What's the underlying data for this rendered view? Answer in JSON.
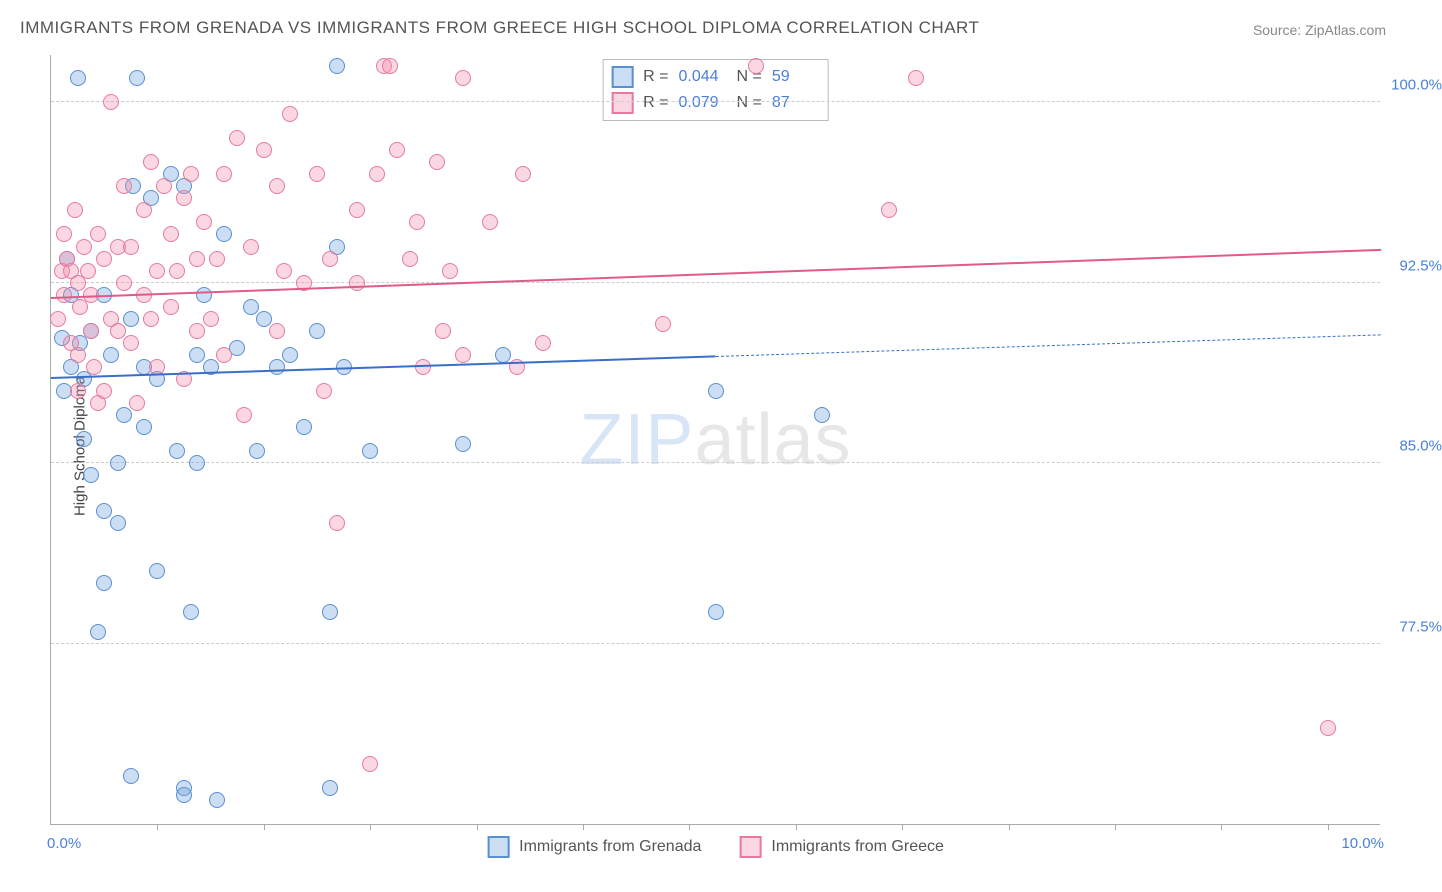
{
  "title": "IMMIGRANTS FROM GRENADA VS IMMIGRANTS FROM GREECE HIGH SCHOOL DIPLOMA CORRELATION CHART",
  "source": "Source: ZipAtlas.com",
  "ylabel": "High School Diploma",
  "watermark_a": "ZIP",
  "watermark_b": "atlas",
  "chart": {
    "type": "scatter",
    "background_color": "#ffffff",
    "grid_color": "#cccccc",
    "axis_color": "#aaaaaa",
    "xlim": [
      0.0,
      10.0
    ],
    "ylim": [
      70.0,
      102.0
    ],
    "xticks": [
      0.8,
      1.6,
      2.4,
      3.2,
      4.0,
      4.8,
      5.6,
      6.4,
      7.2,
      8.0,
      8.8,
      9.6
    ],
    "yticks": [
      77.5,
      85.0,
      92.5,
      100.0
    ],
    "ytick_labels": [
      "77.5%",
      "85.0%",
      "92.5%",
      "100.0%"
    ],
    "xlim_labels": [
      "0.0%",
      "10.0%"
    ],
    "label_fontsize": 15,
    "point_radius": 8,
    "point_border_width": 1.5,
    "series": [
      {
        "name": "Immigrants from Grenada",
        "color_fill": "rgba(108,160,220,0.35)",
        "color_stroke": "#5a8fd0",
        "r_value": "0.044",
        "n_value": "59",
        "trend": {
          "x1": 0.0,
          "y1": 88.5,
          "x2": 5.0,
          "y2": 89.4,
          "dash_to_x": 10.0,
          "dash_to_y": 90.3,
          "width": 2.5,
          "color": "#3b6fc7"
        },
        "points": [
          [
            0.08,
            90.2
          ],
          [
            0.1,
            88.0
          ],
          [
            0.12,
            93.5
          ],
          [
            0.15,
            92.0
          ],
          [
            0.15,
            89.0
          ],
          [
            0.2,
            101.0
          ],
          [
            0.22,
            90.0
          ],
          [
            0.25,
            88.5
          ],
          [
            0.25,
            86.0
          ],
          [
            0.3,
            84.5
          ],
          [
            0.3,
            90.5
          ],
          [
            0.35,
            78.0
          ],
          [
            0.4,
            92.0
          ],
          [
            0.4,
            83.0
          ],
          [
            0.4,
            80.0
          ],
          [
            0.45,
            89.5
          ],
          [
            0.5,
            85.0
          ],
          [
            0.5,
            82.5
          ],
          [
            0.55,
            87.0
          ],
          [
            0.6,
            72.0
          ],
          [
            0.6,
            91.0
          ],
          [
            0.62,
            96.5
          ],
          [
            0.65,
            101.0
          ],
          [
            0.7,
            89.0
          ],
          [
            0.7,
            86.5
          ],
          [
            0.75,
            96.0
          ],
          [
            0.8,
            80.5
          ],
          [
            0.8,
            88.5
          ],
          [
            0.9,
            97.0
          ],
          [
            0.95,
            85.5
          ],
          [
            1.0,
            71.5
          ],
          [
            1.0,
            71.2
          ],
          [
            1.0,
            96.5
          ],
          [
            1.05,
            78.8
          ],
          [
            1.1,
            89.5
          ],
          [
            1.1,
            85.0
          ],
          [
            1.15,
            92.0
          ],
          [
            1.2,
            89.0
          ],
          [
            1.3,
            94.5
          ],
          [
            1.25,
            71.0
          ],
          [
            1.4,
            89.8
          ],
          [
            1.5,
            91.5
          ],
          [
            1.55,
            85.5
          ],
          [
            1.6,
            91.0
          ],
          [
            1.7,
            89.0
          ],
          [
            1.8,
            89.5
          ],
          [
            1.9,
            86.5
          ],
          [
            2.0,
            90.5
          ],
          [
            2.1,
            71.5
          ],
          [
            2.1,
            78.8
          ],
          [
            2.15,
            94.0
          ],
          [
            2.15,
            101.5
          ],
          [
            2.2,
            89.0
          ],
          [
            2.4,
            85.5
          ],
          [
            3.1,
            85.8
          ],
          [
            3.4,
            89.5
          ],
          [
            5.0,
            88.0
          ],
          [
            5.0,
            78.8
          ],
          [
            5.8,
            87.0
          ]
        ]
      },
      {
        "name": "Immigrants from Greece",
        "color_fill": "rgba(240,140,170,0.35)",
        "color_stroke": "#e77aa0",
        "r_value": "0.079",
        "n_value": "87",
        "trend": {
          "x1": 0.0,
          "y1": 91.8,
          "x2": 10.0,
          "y2": 93.8,
          "width": 2.5,
          "color": "#e05a8a"
        },
        "points": [
          [
            0.05,
            91.0
          ],
          [
            0.08,
            93.0
          ],
          [
            0.1,
            92.0
          ],
          [
            0.1,
            94.5
          ],
          [
            0.12,
            93.5
          ],
          [
            0.15,
            93.0
          ],
          [
            0.15,
            90.0
          ],
          [
            0.18,
            95.5
          ],
          [
            0.2,
            88.0
          ],
          [
            0.2,
            92.5
          ],
          [
            0.2,
            89.5
          ],
          [
            0.22,
            91.5
          ],
          [
            0.25,
            94.0
          ],
          [
            0.28,
            93.0
          ],
          [
            0.3,
            90.5
          ],
          [
            0.3,
            92.0
          ],
          [
            0.32,
            89.0
          ],
          [
            0.35,
            94.5
          ],
          [
            0.35,
            87.5
          ],
          [
            0.4,
            88.0
          ],
          [
            0.4,
            93.5
          ],
          [
            0.45,
            100.0
          ],
          [
            0.45,
            91.0
          ],
          [
            0.5,
            94.0
          ],
          [
            0.5,
            90.5
          ],
          [
            0.55,
            92.5
          ],
          [
            0.55,
            96.5
          ],
          [
            0.6,
            94.0
          ],
          [
            0.6,
            90.0
          ],
          [
            0.65,
            87.5
          ],
          [
            0.7,
            92.0
          ],
          [
            0.7,
            95.5
          ],
          [
            0.75,
            91.0
          ],
          [
            0.75,
            97.5
          ],
          [
            0.8,
            93.0
          ],
          [
            0.8,
            89.0
          ],
          [
            0.85,
            96.5
          ],
          [
            0.9,
            94.5
          ],
          [
            0.9,
            91.5
          ],
          [
            0.95,
            93.0
          ],
          [
            1.0,
            96.0
          ],
          [
            1.0,
            88.5
          ],
          [
            1.05,
            97.0
          ],
          [
            1.1,
            93.5
          ],
          [
            1.1,
            90.5
          ],
          [
            1.15,
            95.0
          ],
          [
            1.2,
            91.0
          ],
          [
            1.25,
            93.5
          ],
          [
            1.3,
            89.5
          ],
          [
            1.3,
            97.0
          ],
          [
            1.4,
            98.5
          ],
          [
            1.45,
            87.0
          ],
          [
            1.5,
            94.0
          ],
          [
            1.6,
            98.0
          ],
          [
            1.7,
            96.5
          ],
          [
            1.7,
            90.5
          ],
          [
            1.75,
            93.0
          ],
          [
            1.8,
            99.5
          ],
          [
            1.9,
            92.5
          ],
          [
            2.0,
            97.0
          ],
          [
            2.05,
            88.0
          ],
          [
            2.1,
            93.5
          ],
          [
            2.15,
            82.5
          ],
          [
            2.3,
            92.5
          ],
          [
            2.3,
            95.5
          ],
          [
            2.4,
            72.5
          ],
          [
            2.45,
            97.0
          ],
          [
            2.5,
            101.5
          ],
          [
            2.55,
            101.5
          ],
          [
            2.6,
            98.0
          ],
          [
            2.7,
            93.5
          ],
          [
            2.75,
            95.0
          ],
          [
            2.8,
            89.0
          ],
          [
            2.9,
            97.5
          ],
          [
            2.95,
            90.5
          ],
          [
            3.0,
            93.0
          ],
          [
            3.1,
            89.5
          ],
          [
            3.1,
            101.0
          ],
          [
            3.3,
            95.0
          ],
          [
            3.5,
            89.0
          ],
          [
            3.55,
            97.0
          ],
          [
            3.7,
            90.0
          ],
          [
            4.6,
            90.8
          ],
          [
            5.3,
            101.5
          ],
          [
            6.3,
            95.5
          ],
          [
            6.5,
            101.0
          ],
          [
            9.6,
            74.0
          ]
        ]
      }
    ]
  },
  "legend_top": {
    "r_label": "R =",
    "n_label": "N ="
  },
  "legend_bottom_labels": [
    "Immigrants from Grenada",
    "Immigrants from Greece"
  ]
}
